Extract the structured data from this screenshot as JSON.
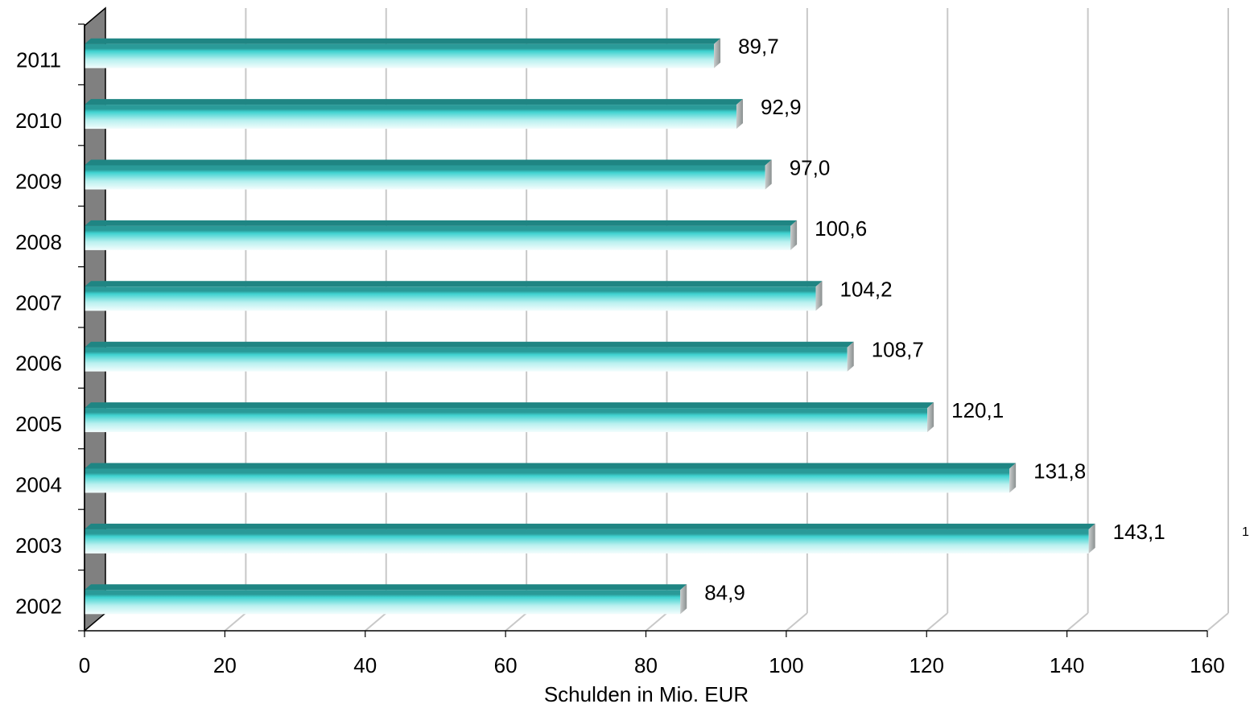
{
  "chart_data": {
    "type": "bar",
    "orientation": "horizontal",
    "style": "3d-cylinder",
    "categories": [
      "2002",
      "2003",
      "2004",
      "2005",
      "2006",
      "2007",
      "2008",
      "2009",
      "2010",
      "2011"
    ],
    "values": [
      84.9,
      143.1,
      131.8,
      120.1,
      108.7,
      104.2,
      100.6,
      97.0,
      92.9,
      89.7
    ],
    "data_labels": [
      "84,9",
      "143,1",
      "131,8",
      "120,1",
      "108,7",
      "104,2",
      "100,6",
      "97,0",
      "92,9",
      "89,7"
    ],
    "x_ticks": [
      "0",
      "20",
      "40",
      "60",
      "80",
      "100",
      "120",
      "140",
      "160"
    ],
    "xlim": [
      0,
      160
    ],
    "xlabel": "Schulden in Mio. EUR",
    "ylabel": "",
    "title": "",
    "grid": true,
    "legend": "none",
    "stray_label": "1",
    "colors": {
      "bar_top": "#2a9a98",
      "bar_mid": "#3fd2d0",
      "bar_light": "#e6fbfb",
      "bar_end": "#9aa0a0",
      "wall": "#808080",
      "grid": "#c8c8c8",
      "axis": "#000000"
    }
  }
}
